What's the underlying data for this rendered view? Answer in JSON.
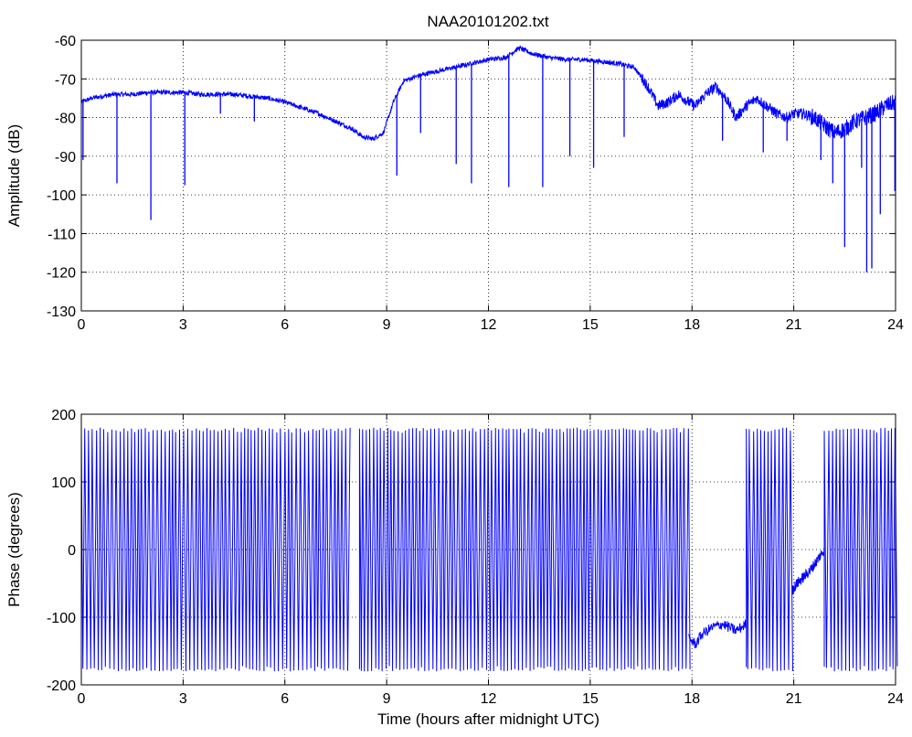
{
  "figure": {
    "title": "NAA20101202.txt",
    "line_color": "#0000ff"
  },
  "chart_data": [
    {
      "type": "line",
      "title": "NAA20101202.txt",
      "xlabel": "",
      "ylabel": "Amplitude (dB)",
      "xlim": [
        0,
        24
      ],
      "ylim": [
        -130,
        -60
      ],
      "xticks": [
        0,
        3,
        6,
        9,
        12,
        15,
        18,
        21,
        24
      ],
      "yticks": [
        -130,
        -120,
        -110,
        -100,
        -90,
        -80,
        -70,
        -60
      ],
      "grid": true,
      "series": [
        {
          "color": "#0000ff",
          "x": [
            0,
            0.3,
            0.6,
            1,
            1.5,
            2,
            2.5,
            3,
            3.5,
            4,
            4.5,
            5,
            5.5,
            6,
            6.5,
            7,
            7.5,
            8,
            8.3,
            8.6,
            8.9,
            9.2,
            9.5,
            10,
            10.5,
            11,
            11.5,
            12,
            12.5,
            12.9,
            13.3,
            13.8,
            14.3,
            14.8,
            15.3,
            15.8,
            16.3,
            16.7,
            17.0,
            17.3,
            17.6,
            17.9,
            18.1,
            18.4,
            18.7,
            19.0,
            19.3,
            19.6,
            19.9,
            20.2,
            20.5,
            20.8,
            21.0,
            21.3,
            21.6,
            21.9,
            22.2,
            22.5,
            22.8,
            23.1,
            23.4,
            23.7,
            24
          ],
          "y": [
            -76,
            -75,
            -74.5,
            -74,
            -74,
            -73.5,
            -73.5,
            -73.5,
            -74,
            -74,
            -74,
            -74.5,
            -75,
            -76,
            -77.5,
            -79,
            -81,
            -83,
            -85,
            -85.5,
            -84,
            -76,
            -70.5,
            -69,
            -68,
            -67,
            -66,
            -65,
            -64.5,
            -62,
            -63.5,
            -64.5,
            -65,
            -65,
            -65.5,
            -66,
            -67,
            -72,
            -77,
            -76,
            -74,
            -76,
            -77,
            -74,
            -72,
            -75,
            -80,
            -77,
            -75,
            -77,
            -79,
            -80,
            -79,
            -79,
            -80,
            -82,
            -84,
            -83,
            -81,
            -80,
            -79,
            -77,
            -76
          ]
        }
      ],
      "dips": [
        {
          "x": 0.05,
          "y": -91
        },
        {
          "x": 1.05,
          "y": -97
        },
        {
          "x": 2.05,
          "y": -106.5
        },
        {
          "x": 3.05,
          "y": -97.5
        },
        {
          "x": 4.1,
          "y": -79
        },
        {
          "x": 5.1,
          "y": -81
        },
        {
          "x": 9.3,
          "y": -95
        },
        {
          "x": 10.0,
          "y": -84
        },
        {
          "x": 11.05,
          "y": -92
        },
        {
          "x": 11.5,
          "y": -97
        },
        {
          "x": 12.6,
          "y": -98
        },
        {
          "x": 13.6,
          "y": -98
        },
        {
          "x": 14.4,
          "y": -90
        },
        {
          "x": 15.1,
          "y": -93
        },
        {
          "x": 16.0,
          "y": -85
        },
        {
          "x": 18.9,
          "y": -86
        },
        {
          "x": 20.1,
          "y": -89
        },
        {
          "x": 20.8,
          "y": -86
        },
        {
          "x": 21.8,
          "y": -91
        },
        {
          "x": 22.15,
          "y": -97
        },
        {
          "x": 22.5,
          "y": -113.5
        },
        {
          "x": 23.0,
          "y": -93
        },
        {
          "x": 23.15,
          "y": -120
        },
        {
          "x": 23.3,
          "y": -119
        },
        {
          "x": 23.55,
          "y": -105
        },
        {
          "x": 23.98,
          "y": -99
        }
      ]
    },
    {
      "type": "line",
      "title": "",
      "xlabel": "Time (hours after midnight UTC)",
      "ylabel": "Phase (degrees)",
      "xlim": [
        0,
        24
      ],
      "ylim": [
        -200,
        200
      ],
      "xticks": [
        0,
        3,
        6,
        9,
        12,
        15,
        18,
        21,
        24
      ],
      "yticks": [
        -200,
        -100,
        0,
        100,
        200
      ],
      "grid": true,
      "series": [
        {
          "color": "#0000ff",
          "wrapped_range": [
            -180,
            180
          ],
          "dense_wrap_segments": [
            {
              "x_start": 0.0,
              "x_end": 7.9
            },
            {
              "x_start": 8.2,
              "x_end": 17.9
            },
            {
              "x_start": 19.6,
              "x_end": 20.95
            },
            {
              "x_start": 21.9,
              "x_end": 24.0
            }
          ],
          "smooth_segments": [
            {
              "x": [
                17.9,
                18.1,
                18.3,
                18.6,
                18.9,
                19.1,
                19.3,
                19.6
              ],
              "y": [
                -130,
                -140,
                -125,
                -115,
                -110,
                -115,
                -120,
                -110
              ]
            },
            {
              "x": [
                20.95,
                21.1,
                21.3,
                21.5,
                21.7,
                21.9
              ],
              "y": [
                -60,
                -50,
                -40,
                -30,
                -15,
                0
              ]
            }
          ]
        }
      ]
    }
  ]
}
